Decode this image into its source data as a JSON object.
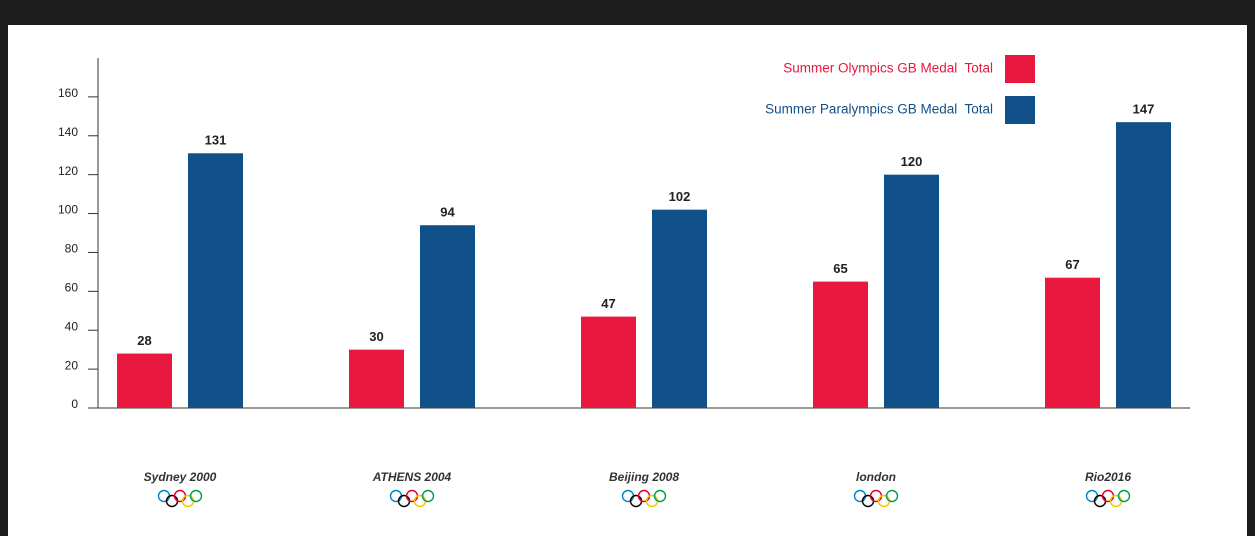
{
  "chart_data": {
    "type": "bar",
    "categories": [
      "Sydney 2000",
      "ATHENS 2004",
      "Beijing 2008",
      "london",
      "Rio2016"
    ],
    "series": [
      {
        "name": "Summer Olympics GB Medal  Total",
        "color": "#e8183f",
        "values": [
          28,
          30,
          47,
          65,
          67
        ]
      },
      {
        "name": "Summer Paralympics GB Medal  Total",
        "color": "#12508a",
        "values": [
          131,
          94,
          102,
          120,
          147
        ]
      }
    ],
    "ylim": [
      0,
      180
    ],
    "yticks": [
      0,
      20,
      40,
      60,
      80,
      100,
      120,
      140,
      160
    ],
    "legend": "top-right"
  }
}
